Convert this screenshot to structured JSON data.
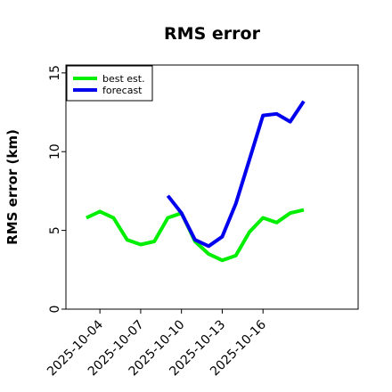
{
  "chart_data": {
    "type": "line",
    "title": "RMS error",
    "xlabel": "",
    "ylabel": "RMS error (km)",
    "ylim": [
      0,
      15.5
    ],
    "xlim": [
      "2025-10-01T12:00",
      "2025-10-23T00:00"
    ],
    "yticks": [
      0,
      5,
      10,
      15
    ],
    "xticks": [
      "2025-10-04",
      "2025-10-07",
      "2025-10-10",
      "2025-10-13",
      "2025-10-16"
    ],
    "grid": false,
    "legend": "top-left",
    "series": [
      {
        "name": "best est.",
        "color": "#00ee00",
        "x": [
          "2025-10-03",
          "2025-10-04",
          "2025-10-05",
          "2025-10-06",
          "2025-10-07",
          "2025-10-08",
          "2025-10-09",
          "2025-10-10",
          "2025-10-11",
          "2025-10-12",
          "2025-10-13",
          "2025-10-14",
          "2025-10-15",
          "2025-10-16",
          "2025-10-17",
          "2025-10-18",
          "2025-10-19"
        ],
        "values": [
          5.8,
          6.2,
          5.8,
          4.4,
          4.1,
          4.3,
          5.8,
          6.1,
          4.3,
          3.5,
          3.1,
          3.4,
          4.9,
          5.8,
          5.5,
          6.1,
          6.3
        ]
      },
      {
        "name": "forecast",
        "color": "#0000ee",
        "x": [
          "2025-10-09",
          "2025-10-10",
          "2025-10-11",
          "2025-10-12",
          "2025-10-13",
          "2025-10-14",
          "2025-10-15",
          "2025-10-16",
          "2025-10-17",
          "2025-10-18",
          "2025-10-19"
        ],
        "values": [
          7.2,
          6.1,
          4.4,
          4.0,
          4.6,
          6.7,
          9.5,
          12.3,
          12.4,
          11.9,
          13.2
        ]
      }
    ]
  }
}
